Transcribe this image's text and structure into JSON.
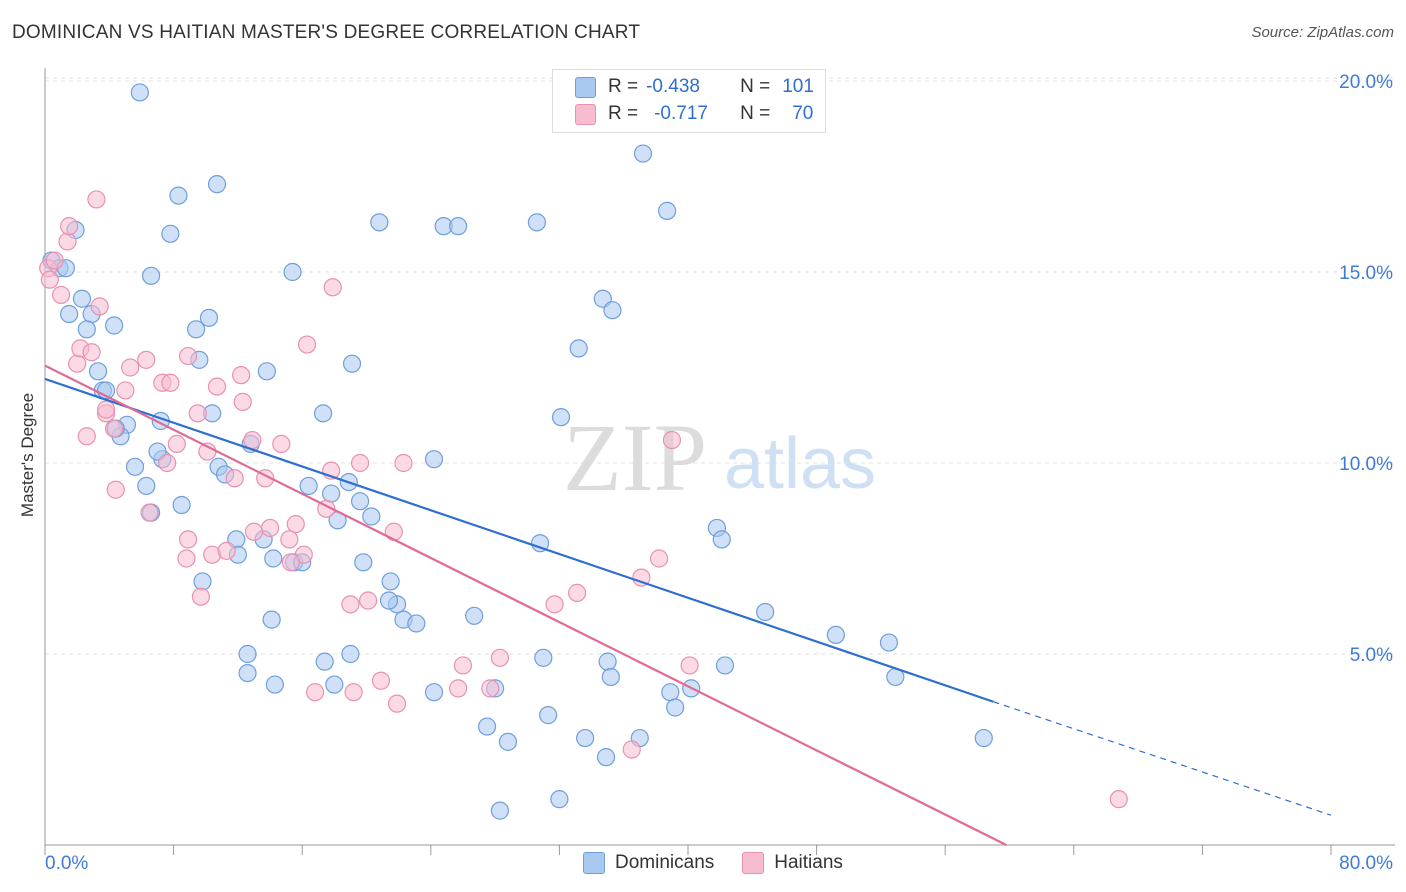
{
  "title": "DOMINICAN VS HAITIAN MASTER'S DEGREE CORRELATION CHART",
  "source": "Source: ZipAtlas.com",
  "watermark": {
    "zip": "ZIP",
    "atlas": "atlas"
  },
  "legend_stats": {
    "dominicans": {
      "r_label": "R =",
      "r_value": "-0.438",
      "n_label": "N =",
      "n_value": "101"
    },
    "haitians": {
      "r_label": "R =",
      "r_value": "-0.717",
      "n_label": "N =",
      "n_value": "70"
    }
  },
  "legend": {
    "dominicans": "Dominicans",
    "haitians": "Haitians"
  },
  "colors": {
    "dominicans_fill": "#a9c8f0",
    "dominicans_stroke": "#6e9fdc",
    "dominicans_line": "#2f6fd1",
    "haitians_fill": "#f7bcd0",
    "haitians_stroke": "#e891b0",
    "haitians_line": "#e06a95",
    "axis_label": "#3f7bd6",
    "grid": "#e0e0e0"
  },
  "chart_data": {
    "type": "scatter",
    "title": "DOMINICAN VS HAITIAN MASTER'S DEGREE CORRELATION CHART",
    "xlabel": "",
    "ylabel": "Master's Degree",
    "xlim": [
      0,
      80
    ],
    "ylim": [
      0,
      20.8
    ],
    "x_tick_labels": [
      "0.0%",
      "80.0%"
    ],
    "y_ticks": [
      5,
      10,
      15,
      20
    ],
    "y_tick_labels": [
      "5.0%",
      "10.0%",
      "15.0%",
      "20.0%"
    ],
    "grid": true,
    "series": [
      {
        "name": "Dominicans",
        "points": [
          [
            0.4,
            15.3
          ],
          [
            0.9,
            15.1
          ],
          [
            1.3,
            15.1
          ],
          [
            1.9,
            16.1
          ],
          [
            2.3,
            14.3
          ],
          [
            2.9,
            13.9
          ],
          [
            1.5,
            13.9
          ],
          [
            2.6,
            13.5
          ],
          [
            4.3,
            13.6
          ],
          [
            5.9,
            19.7
          ],
          [
            6.6,
            14.9
          ],
          [
            8.3,
            17.0
          ],
          [
            10.7,
            17.3
          ],
          [
            7.8,
            16.0
          ],
          [
            9.4,
            13.5
          ],
          [
            10.2,
            13.8
          ],
          [
            9.6,
            12.7
          ],
          [
            13.8,
            12.4
          ],
          [
            15.4,
            15.0
          ],
          [
            19.1,
            12.6
          ],
          [
            20.8,
            16.3
          ],
          [
            24.8,
            16.2
          ],
          [
            25.7,
            16.2
          ],
          [
            30.6,
            16.3
          ],
          [
            33.2,
            13.0
          ],
          [
            32.1,
            11.2
          ],
          [
            30.8,
            7.9
          ],
          [
            37.2,
            18.1
          ],
          [
            38.7,
            16.6
          ],
          [
            34.7,
            14.3
          ],
          [
            35.3,
            14.0
          ],
          [
            3.3,
            12.4
          ],
          [
            3.6,
            11.9
          ],
          [
            3.8,
            11.9
          ],
          [
            5.1,
            11.0
          ],
          [
            7.2,
            11.1
          ],
          [
            10.4,
            11.3
          ],
          [
            4.7,
            10.7
          ],
          [
            5.6,
            9.9
          ],
          [
            7.3,
            10.1
          ],
          [
            6.3,
            9.4
          ],
          [
            6.6,
            8.7
          ],
          [
            8.5,
            8.9
          ],
          [
            10.8,
            9.9
          ],
          [
            11.2,
            9.7
          ],
          [
            12.8,
            10.5
          ],
          [
            11.9,
            8.0
          ],
          [
            12.0,
            7.6
          ],
          [
            13.6,
            8.0
          ],
          [
            14.2,
            7.5
          ],
          [
            15.5,
            7.4
          ],
          [
            16.0,
            7.4
          ],
          [
            16.4,
            9.4
          ],
          [
            17.3,
            11.3
          ],
          [
            17.8,
            9.2
          ],
          [
            18.2,
            8.5
          ],
          [
            18.9,
            9.5
          ],
          [
            19.6,
            9.0
          ],
          [
            20.3,
            8.6
          ],
          [
            19.8,
            7.4
          ],
          [
            21.5,
            6.9
          ],
          [
            21.9,
            6.3
          ],
          [
            21.4,
            6.4
          ],
          [
            22.3,
            5.9
          ],
          [
            23.1,
            5.8
          ],
          [
            24.2,
            10.1
          ],
          [
            26.7,
            6.0
          ],
          [
            28.0,
            4.1
          ],
          [
            27.5,
            3.1
          ],
          [
            28.8,
            2.7
          ],
          [
            31.3,
            3.4
          ],
          [
            31.0,
            4.9
          ],
          [
            32.0,
            1.2
          ],
          [
            33.6,
            2.8
          ],
          [
            34.9,
            2.3
          ],
          [
            35.0,
            4.8
          ],
          [
            35.2,
            4.4
          ],
          [
            37.0,
            2.8
          ],
          [
            38.9,
            4.0
          ],
          [
            39.2,
            3.6
          ],
          [
            40.2,
            4.1
          ],
          [
            42.3,
            4.7
          ],
          [
            41.8,
            8.3
          ],
          [
            42.1,
            8.0
          ],
          [
            44.8,
            6.1
          ],
          [
            49.2,
            5.5
          ],
          [
            52.5,
            5.3
          ],
          [
            52.9,
            4.4
          ],
          [
            58.4,
            2.8
          ],
          [
            9.8,
            6.9
          ],
          [
            14.1,
            5.9
          ],
          [
            12.6,
            5.0
          ],
          [
            12.6,
            4.5
          ],
          [
            14.3,
            4.2
          ],
          [
            17.4,
            4.8
          ],
          [
            18.0,
            4.2
          ],
          [
            19.0,
            5.0
          ],
          [
            24.2,
            4.0
          ],
          [
            28.3,
            0.9
          ],
          [
            4.4,
            10.9
          ],
          [
            7.0,
            10.3
          ]
        ],
        "trendline": {
          "x": [
            0,
            59
          ],
          "y": [
            12.2,
            3.75
          ]
        },
        "trendline_dashed": {
          "x": [
            59,
            80
          ],
          "y": [
            3.75,
            0.78
          ]
        }
      },
      {
        "name": "Haitians",
        "points": [
          [
            0.2,
            15.1
          ],
          [
            0.3,
            14.8
          ],
          [
            0.6,
            15.3
          ],
          [
            1.0,
            14.4
          ],
          [
            1.4,
            15.8
          ],
          [
            1.5,
            16.2
          ],
          [
            3.2,
            16.9
          ],
          [
            3.4,
            14.1
          ],
          [
            2.0,
            12.6
          ],
          [
            2.2,
            13.0
          ],
          [
            2.9,
            12.9
          ],
          [
            2.6,
            10.7
          ],
          [
            3.8,
            11.3
          ],
          [
            4.3,
            10.9
          ],
          [
            5.0,
            11.9
          ],
          [
            5.3,
            12.5
          ],
          [
            6.3,
            12.7
          ],
          [
            7.3,
            12.1
          ],
          [
            7.8,
            12.1
          ],
          [
            8.2,
            10.5
          ],
          [
            7.6,
            10.0
          ],
          [
            6.5,
            8.7
          ],
          [
            4.4,
            9.3
          ],
          [
            8.9,
            12.8
          ],
          [
            9.5,
            11.3
          ],
          [
            10.1,
            10.3
          ],
          [
            10.7,
            12.0
          ],
          [
            11.8,
            9.6
          ],
          [
            12.2,
            12.3
          ],
          [
            12.3,
            11.6
          ],
          [
            12.9,
            10.6
          ],
          [
            13.7,
            9.6
          ],
          [
            14.7,
            10.5
          ],
          [
            15.6,
            8.4
          ],
          [
            16.1,
            7.6
          ],
          [
            16.3,
            13.1
          ],
          [
            17.5,
            8.8
          ],
          [
            17.8,
            9.8
          ],
          [
            17.9,
            14.6
          ],
          [
            19.0,
            6.3
          ],
          [
            19.6,
            10.0
          ],
          [
            20.1,
            6.4
          ],
          [
            21.7,
            8.2
          ],
          [
            22.3,
            10.0
          ],
          [
            19.2,
            4.0
          ],
          [
            20.9,
            4.3
          ],
          [
            21.9,
            3.7
          ],
          [
            8.8,
            7.5
          ],
          [
            8.9,
            8.0
          ],
          [
            9.7,
            6.5
          ],
          [
            10.4,
            7.6
          ],
          [
            11.3,
            7.7
          ],
          [
            13.0,
            8.2
          ],
          [
            14.0,
            8.3
          ],
          [
            15.2,
            8.0
          ],
          [
            15.3,
            7.4
          ],
          [
            16.8,
            4.0
          ],
          [
            26.0,
            4.7
          ],
          [
            25.7,
            4.1
          ],
          [
            27.7,
            4.1
          ],
          [
            28.3,
            4.9
          ],
          [
            31.7,
            6.3
          ],
          [
            33.1,
            6.6
          ],
          [
            36.5,
            2.5
          ],
          [
            37.1,
            7.0
          ],
          [
            38.2,
            7.5
          ],
          [
            39.0,
            10.6
          ],
          [
            40.1,
            4.7
          ],
          [
            66.8,
            1.2
          ],
          [
            3.8,
            11.4
          ]
        ],
        "trendline": {
          "x": [
            0,
            59.8
          ],
          "y": [
            12.55,
            0.0
          ]
        }
      }
    ]
  }
}
